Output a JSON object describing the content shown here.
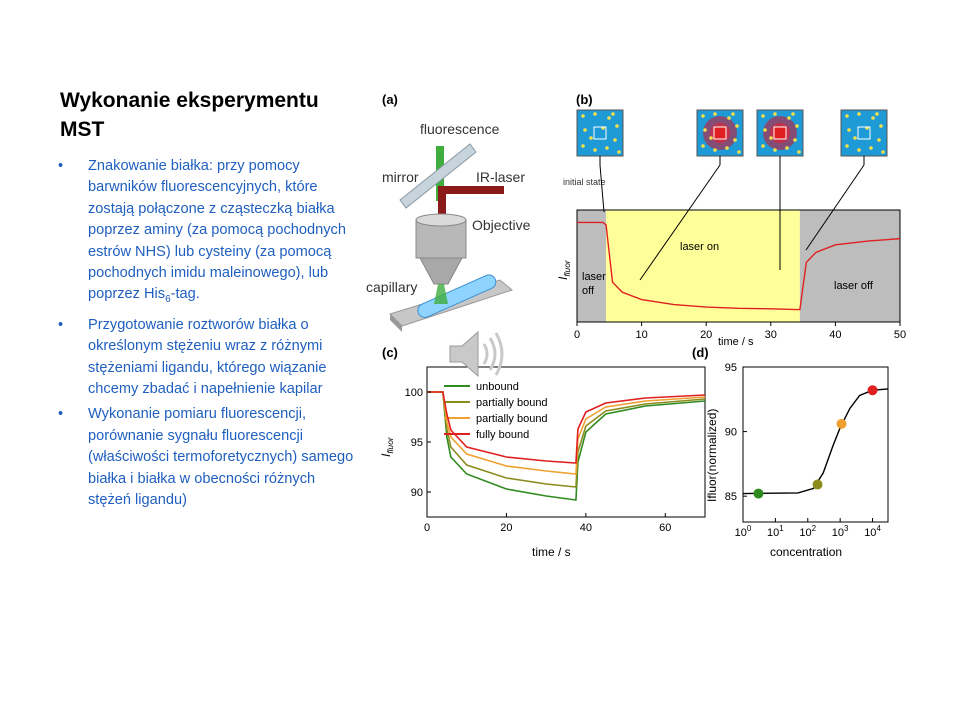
{
  "slide": {
    "title": "Wykonanie eksperymentu MST",
    "bullets": [
      {
        "text": "Znakowanie białka: przy pomocy barwników fluorescencyjnych, które zostają połączone z cząsteczką białka poprzez  aminy (za pomocą pochodnych estrów NHS) lub cysteiny (za pomocą pochodnych imidu maleinowego), lub poprzez His",
        "sub": "6",
        "tail": "-tag."
      },
      {
        "text": "Przygotowanie roztworów białka o określonym stężeniu wraz z różnymi stężeniami ligandu, którego wiązanie chcemy zbadać i napełnienie kapilar"
      },
      {
        "text": "Wykonanie pomiaru fluorescencji, porównanie sygnału fluorescencji (właściwości termoforetycznych) samego białka i białka w obecności różnych stężeń ligandu)"
      }
    ]
  },
  "figure": {
    "panel_a": {
      "tag": "(a)",
      "labels": {
        "fluorescence": "fluorescence",
        "mirror": "mirror",
        "ir_laser": "IR-laser",
        "objective": "Objective",
        "capillary": "capillary"
      }
    },
    "panel_b": {
      "tag": "(b)",
      "initial_state": "initial state"
    },
    "panel_c": {
      "tag": "(c)"
    },
    "panel_d": {
      "tag": "(d)"
    }
  },
  "colors": {
    "bullet_text": "#1f5fbf",
    "yellow_region": "#ffff99",
    "gray_region": "#bdbdbd",
    "unbound": "#2e8b1e",
    "partially_bound_1": "#8c8c1e",
    "partially_bound_2": "#f0a030",
    "fully_bound": "#e02020"
  },
  "icons": {
    "speaker": "speaker-icon"
  },
  "chart_data": [
    {
      "panel": "b",
      "type": "line",
      "xlabel": "time / s",
      "ylabel": "Ifluor",
      "x_ticks": [
        0,
        10,
        20,
        30,
        40,
        50
      ],
      "xlim": [
        0,
        50
      ],
      "regions": [
        {
          "label": "laser off",
          "from": 0,
          "to": 4.5,
          "color": "gray"
        },
        {
          "label": "laser on",
          "from": 4.5,
          "to": 34.5,
          "color": "yellow"
        },
        {
          "label": "laser off",
          "from": 34.5,
          "to": 50,
          "color": "gray"
        }
      ],
      "series": [
        {
          "color": "#e02020",
          "points": [
            [
              0,
              100
            ],
            [
              2,
              100
            ],
            [
              4,
              100
            ],
            [
              4.5,
              99
            ],
            [
              5.5,
              76
            ],
            [
              7,
              72
            ],
            [
              10,
              69
            ],
            [
              15,
              67
            ],
            [
              20,
              66
            ],
            [
              25,
              65.5
            ],
            [
              30,
              65.3
            ],
            [
              34,
              65
            ],
            [
              34.5,
              65
            ],
            [
              35.5,
              84
            ],
            [
              37,
              88
            ],
            [
              40,
              91
            ],
            [
              45,
              92.5
            ],
            [
              50,
              93.5
            ]
          ]
        }
      ]
    },
    {
      "panel": "c",
      "type": "line",
      "xlabel": "time / s",
      "ylabel": "Ifluor",
      "x_ticks": [
        0,
        20,
        40,
        60
      ],
      "y_ticks": [
        90,
        95,
        100
      ],
      "xlim": [
        0,
        70
      ],
      "ylim": [
        87.5,
        102.5
      ],
      "legend_position": "top-left",
      "series": [
        {
          "name": "unbound",
          "color": "#2e8b1e",
          "points": [
            [
              0,
              100
            ],
            [
              4,
              100
            ],
            [
              5,
              95.5
            ],
            [
              6,
              93.5
            ],
            [
              10,
              91.8
            ],
            [
              20,
              90.3
            ],
            [
              30,
              89.6
            ],
            [
              37.5,
              89.2
            ],
            [
              38,
              93
            ],
            [
              40,
              96
            ],
            [
              45,
              97.8
            ],
            [
              55,
              98.6
            ],
            [
              70,
              99.1
            ]
          ]
        },
        {
          "name": "partially bound",
          "color": "#8c8c1e",
          "points": [
            [
              0,
              100
            ],
            [
              4,
              100
            ],
            [
              5,
              96.3
            ],
            [
              6,
              94.5
            ],
            [
              10,
              92.7
            ],
            [
              20,
              91.4
            ],
            [
              30,
              90.8
            ],
            [
              37.5,
              90.5
            ],
            [
              38,
              94
            ],
            [
              40,
              96.6
            ],
            [
              45,
              98.1
            ],
            [
              55,
              98.8
            ],
            [
              70,
              99.3
            ]
          ]
        },
        {
          "name": "partially bound",
          "color": "#f0a030",
          "points": [
            [
              0,
              100
            ],
            [
              4,
              100
            ],
            [
              5,
              97
            ],
            [
              6,
              95.5
            ],
            [
              10,
              93.8
            ],
            [
              20,
              92.6
            ],
            [
              30,
              92.1
            ],
            [
              37.5,
              91.8
            ],
            [
              38,
              95.3
            ],
            [
              40,
              97.3
            ],
            [
              45,
              98.5
            ],
            [
              55,
              99.1
            ],
            [
              70,
              99.5
            ]
          ]
        },
        {
          "name": "fully bound",
          "color": "#e02020",
          "points": [
            [
              0,
              100
            ],
            [
              4,
              100
            ],
            [
              5,
              97.8
            ],
            [
              6,
              96.2
            ],
            [
              10,
              94.5
            ],
            [
              20,
              93.5
            ],
            [
              30,
              93.1
            ],
            [
              37.5,
              92.9
            ],
            [
              38,
              96.3
            ],
            [
              40,
              98
            ],
            [
              45,
              98.9
            ],
            [
              55,
              99.4
            ],
            [
              70,
              99.7
            ]
          ]
        }
      ]
    },
    {
      "panel": "d",
      "type": "scatter",
      "xlabel": "concentration",
      "ylabel": "Ifluor(normalized)",
      "x_scale": "log",
      "x_ticks": [
        "10^0",
        "10^1",
        "10^2",
        "10^3",
        "10^4"
      ],
      "y_ticks": [
        85,
        90,
        95
      ],
      "xlim": [
        1,
        30000
      ],
      "ylim": [
        83,
        95
      ],
      "points": [
        {
          "x": 3,
          "y": 85.2,
          "color": "#2e8b1e"
        },
        {
          "x": 200,
          "y": 85.9,
          "color": "#8c8c1e"
        },
        {
          "x": 1100,
          "y": 90.6,
          "color": "#f0a030"
        },
        {
          "x": 10000,
          "y": 93.2,
          "color": "#e02020"
        }
      ],
      "fit_curve": [
        [
          1,
          85.2
        ],
        [
          50,
          85.25
        ],
        [
          150,
          85.6
        ],
        [
          300,
          86.8
        ],
        [
          600,
          88.9
        ],
        [
          1000,
          90.3
        ],
        [
          2000,
          91.8
        ],
        [
          4000,
          92.8
        ],
        [
          10000,
          93.2
        ],
        [
          30000,
          93.3
        ]
      ]
    }
  ]
}
